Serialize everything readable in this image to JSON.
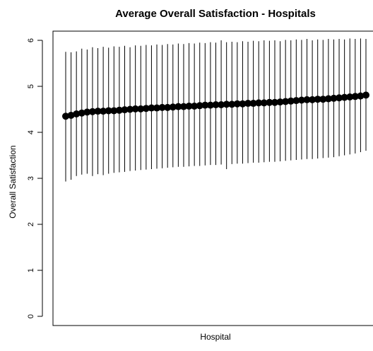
{
  "chart_data": {
    "type": "scatter",
    "title": "Average Overall Satisfaction - Hospitals",
    "xlabel": "Hospital",
    "ylabel": "Overall Satisfaction",
    "ylim": [
      -0.2,
      6.2
    ],
    "yticks": [
      "0",
      "1",
      "2",
      "3",
      "4",
      "5",
      "6"
    ],
    "grid": false,
    "legend": "none",
    "series": [
      {
        "means": [
          4.35,
          4.37,
          4.4,
          4.42,
          4.44,
          4.45,
          4.46,
          4.46,
          4.47,
          4.47,
          4.48,
          4.49,
          4.5,
          4.51,
          4.51,
          4.52,
          4.53,
          4.53,
          4.54,
          4.54,
          4.55,
          4.56,
          4.56,
          4.57,
          4.57,
          4.58,
          4.59,
          4.59,
          4.6,
          4.6,
          4.61,
          4.61,
          4.62,
          4.62,
          4.63,
          4.63,
          4.64,
          4.64,
          4.65,
          4.65,
          4.66,
          4.67,
          4.68,
          4.69,
          4.7,
          4.71,
          4.71,
          4.72,
          4.72,
          4.73,
          4.74,
          4.75,
          4.76,
          4.77,
          4.78,
          4.79,
          4.81
        ],
        "upper": [
          5.75,
          5.74,
          5.76,
          5.82,
          5.8,
          5.85,
          5.83,
          5.86,
          5.84,
          5.87,
          5.86,
          5.88,
          5.85,
          5.89,
          5.88,
          5.9,
          5.89,
          5.91,
          5.9,
          5.92,
          5.91,
          5.93,
          5.92,
          5.94,
          5.93,
          5.95,
          5.94,
          5.96,
          5.95,
          6.0,
          5.96,
          5.97,
          5.96,
          5.98,
          5.97,
          5.99,
          5.98,
          6.0,
          5.99,
          6.0,
          5.98,
          6.01,
          6.0,
          6.02,
          6.01,
          6.03,
          6.0,
          6.02,
          6.01,
          6.03,
          6.02,
          6.03,
          6.02,
          6.04,
          6.03,
          6.04,
          6.03
        ],
        "lower": [
          2.93,
          2.97,
          3.05,
          3.08,
          3.1,
          3.05,
          3.09,
          3.07,
          3.1,
          3.12,
          3.13,
          3.14,
          3.16,
          3.17,
          3.18,
          3.19,
          3.2,
          3.21,
          3.22,
          3.23,
          3.24,
          3.25,
          3.25,
          3.26,
          3.27,
          3.27,
          3.28,
          3.29,
          3.29,
          3.3,
          3.2,
          3.31,
          3.32,
          3.32,
          3.33,
          3.34,
          3.34,
          3.35,
          3.36,
          3.36,
          3.37,
          3.38,
          3.39,
          3.4,
          3.41,
          3.42,
          3.42,
          3.43,
          3.44,
          3.45,
          3.46,
          3.48,
          3.5,
          3.52,
          3.54,
          3.57,
          3.6
        ]
      }
    ]
  }
}
